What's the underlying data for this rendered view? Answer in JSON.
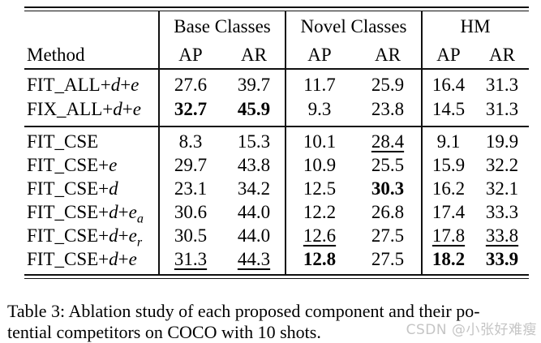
{
  "colors": {
    "text": "#000000",
    "background": "#ffffff",
    "rule": "#101010",
    "watermark": "#c5c5c5"
  },
  "header": {
    "method_label": "Method",
    "groups": [
      {
        "label": "Base Classes"
      },
      {
        "label": "Novel Classes"
      },
      {
        "label": "HM"
      }
    ],
    "subheaders": [
      "AP",
      "AR",
      "AP",
      "AR",
      "AP",
      "AR"
    ]
  },
  "table": {
    "groups": [
      {
        "rows": [
          {
            "method": [
              [
                "FIT_ALL+",
                ""
              ],
              [
                "d",
                "i"
              ],
              [
                "+",
                ""
              ],
              [
                "e",
                "i"
              ]
            ],
            "values": [
              "27.6",
              "39.7",
              "11.7",
              "25.9",
              "16.4",
              "31.3"
            ],
            "styles": [
              "",
              "",
              "",
              "",
              "",
              ""
            ]
          },
          {
            "method": [
              [
                "FIX_ALL+",
                ""
              ],
              [
                "d",
                "i"
              ],
              [
                "+",
                ""
              ],
              [
                "e",
                "i"
              ]
            ],
            "values": [
              "32.7",
              "45.9",
              "9.3",
              "23.8",
              "14.5",
              "31.3"
            ],
            "styles": [
              "b",
              "b",
              "",
              "",
              "",
              ""
            ]
          }
        ]
      },
      {
        "rows": [
          {
            "method": [
              [
                "FIT_CSE",
                ""
              ]
            ],
            "values": [
              "8.3",
              "15.3",
              "10.1",
              "28.4",
              "9.1",
              "19.9"
            ],
            "styles": [
              "",
              "",
              "",
              "u",
              "",
              ""
            ]
          },
          {
            "method": [
              [
                "FIT_CSE+",
                ""
              ],
              [
                "e",
                "i"
              ]
            ],
            "values": [
              "29.7",
              "43.8",
              "10.9",
              "25.5",
              "15.9",
              "32.2"
            ],
            "styles": [
              "",
              "",
              "",
              "",
              "",
              ""
            ]
          },
          {
            "method": [
              [
                "FIT_CSE+",
                ""
              ],
              [
                "d",
                "i"
              ]
            ],
            "values": [
              "23.1",
              "34.2",
              "12.5",
              "30.3",
              "16.2",
              "32.1"
            ],
            "styles": [
              "",
              "",
              "",
              "b",
              "",
              ""
            ]
          },
          {
            "method": [
              [
                "FIT_CSE+",
                ""
              ],
              [
                "d",
                "i"
              ],
              [
                "+",
                ""
              ],
              [
                "e",
                "i"
              ],
              [
                "a",
                "is"
              ]
            ],
            "values": [
              "30.6",
              "44.0",
              "12.2",
              "26.8",
              "17.4",
              "33.3"
            ],
            "styles": [
              "",
              "",
              "",
              "",
              "",
              ""
            ]
          },
          {
            "method": [
              [
                "FIT_CSE+",
                ""
              ],
              [
                "d",
                "i"
              ],
              [
                "+",
                ""
              ],
              [
                "e",
                "i"
              ],
              [
                "r",
                "is"
              ]
            ],
            "values": [
              "30.5",
              "44.0",
              "12.6",
              "27.5",
              "17.8",
              "33.8"
            ],
            "styles": [
              "",
              "",
              "u",
              "",
              "u",
              "u"
            ]
          },
          {
            "method": [
              [
                "FIT_CSE+",
                ""
              ],
              [
                "d",
                "i"
              ],
              [
                "+",
                ""
              ],
              [
                "e",
                "i"
              ]
            ],
            "values": [
              "31.3",
              "44.3",
              "12.8",
              "27.5",
              "18.2",
              "33.9"
            ],
            "styles": [
              "u",
              "u",
              "b",
              "",
              "b",
              "b"
            ]
          }
        ]
      }
    ]
  },
  "caption": {
    "line1": "Table 3: Ablation study of each proposed component and their po-",
    "line2": "tential competitors on COCO with 10 shots."
  },
  "watermark": {
    "text": "CSDN @小张好难瘦"
  }
}
